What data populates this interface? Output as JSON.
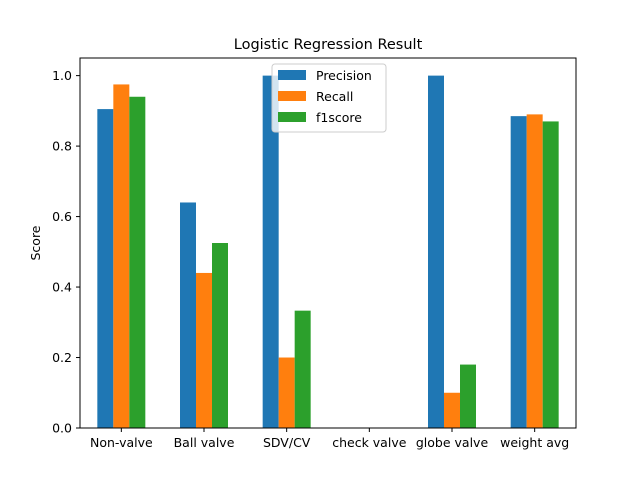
{
  "chart_data": {
    "type": "bar",
    "title": "Logistic Regression Result",
    "xlabel": "",
    "ylabel": "Score",
    "ylim": [
      0,
      1.05
    ],
    "yticks": [
      0.0,
      0.2,
      0.4,
      0.6,
      0.8,
      1.0
    ],
    "ytick_labels": [
      "0.0",
      "0.2",
      "0.4",
      "0.6",
      "0.8",
      "1.0"
    ],
    "categories": [
      "Non-valve",
      "Ball valve",
      "SDV/CV",
      "check valve",
      "globe valve",
      "weight avg"
    ],
    "series": [
      {
        "name": "Precision",
        "color": "#1f77b4",
        "values": [
          0.905,
          0.64,
          1.0,
          0.0,
          1.0,
          0.885
        ]
      },
      {
        "name": "Recall",
        "color": "#ff7f0e",
        "values": [
          0.975,
          0.44,
          0.2,
          0.0,
          0.1,
          0.89
        ]
      },
      {
        "name": "f1score",
        "color": "#2ca02c",
        "values": [
          0.94,
          0.525,
          0.333,
          0.0,
          0.18,
          0.87
        ]
      }
    ],
    "legend_position": "top-center",
    "grid": false
  }
}
